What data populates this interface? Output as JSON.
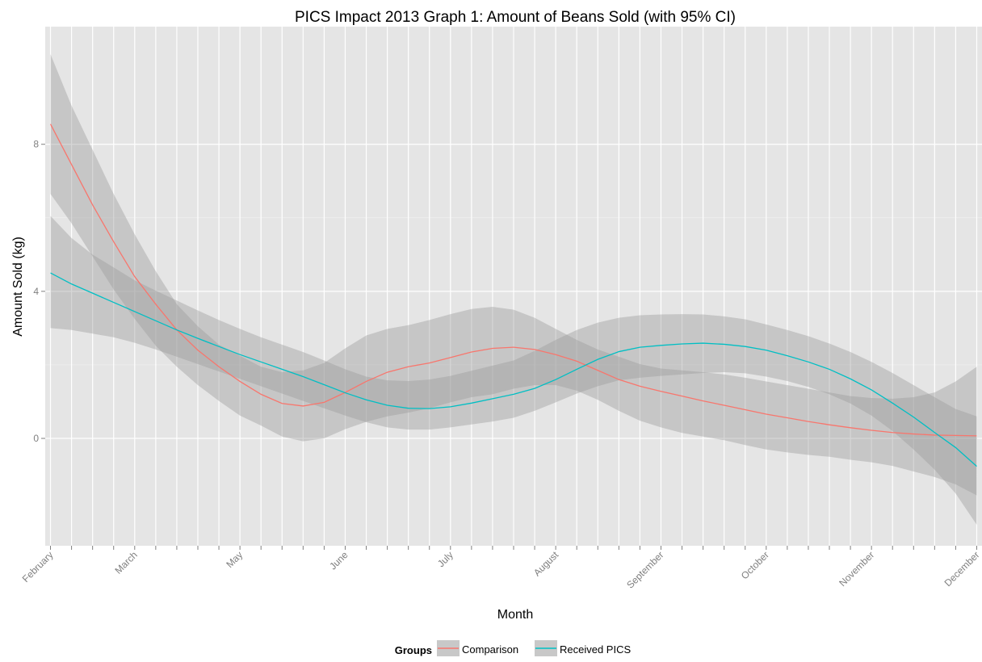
{
  "chart_data": {
    "type": "line",
    "title": "PICS Impact 2013 Graph 1: Amount of Beans Sold (with 95% CI)",
    "xlabel": "Month",
    "ylabel": "Amount Sold (kg)",
    "x_tick_labels": [
      {
        "label": "February",
        "x": 0
      },
      {
        "label": "March",
        "x": 4
      },
      {
        "label": "May",
        "x": 9
      },
      {
        "label": "June",
        "x": 14
      },
      {
        "label": "July",
        "x": 19
      },
      {
        "label": "August",
        "x": 24
      },
      {
        "label": "September",
        "x": 29
      },
      {
        "label": "October",
        "x": 34
      },
      {
        "label": "November",
        "x": 39
      },
      {
        "label": "December",
        "x": 44
      }
    ],
    "x_range": [
      -0.25,
      44.25
    ],
    "x_minor_ticks": 44,
    "y_ticks": [
      0,
      4,
      8
    ],
    "ylim": [
      -2.92,
      11.2
    ],
    "grid": true,
    "legend": {
      "title": "Groups",
      "position": "bottom",
      "entries": [
        "Comparison",
        "Received PICS"
      ]
    },
    "series": [
      {
        "name": "Comparison",
        "color": "#F8766D",
        "points": [
          [
            0,
            8.55
          ],
          [
            1,
            7.45
          ],
          [
            2,
            6.35
          ],
          [
            3,
            5.35
          ],
          [
            4,
            4.4
          ],
          [
            5,
            3.65
          ],
          [
            6,
            2.95
          ],
          [
            7,
            2.4
          ],
          [
            8,
            1.95
          ],
          [
            9,
            1.55
          ],
          [
            10,
            1.2
          ],
          [
            11,
            0.95
          ],
          [
            12,
            0.88
          ],
          [
            13,
            0.98
          ],
          [
            14,
            1.25
          ],
          [
            15,
            1.55
          ],
          [
            16,
            1.8
          ],
          [
            17,
            1.95
          ],
          [
            18,
            2.05
          ],
          [
            19,
            2.2
          ],
          [
            20,
            2.35
          ],
          [
            21,
            2.45
          ],
          [
            22,
            2.48
          ],
          [
            23,
            2.42
          ],
          [
            24,
            2.28
          ],
          [
            25,
            2.1
          ],
          [
            26,
            1.85
          ],
          [
            27,
            1.6
          ],
          [
            28,
            1.42
          ],
          [
            29,
            1.28
          ],
          [
            30,
            1.15
          ],
          [
            31,
            1.02
          ],
          [
            32,
            0.9
          ],
          [
            33,
            0.78
          ],
          [
            34,
            0.66
          ],
          [
            35,
            0.56
          ],
          [
            36,
            0.46
          ],
          [
            37,
            0.37
          ],
          [
            38,
            0.29
          ],
          [
            39,
            0.22
          ],
          [
            40,
            0.16
          ],
          [
            41,
            0.12
          ],
          [
            42,
            0.09
          ],
          [
            43,
            0.08
          ],
          [
            44,
            0.07
          ]
        ],
        "ci_upper": [
          [
            0,
            10.45
          ],
          [
            1,
            9.05
          ],
          [
            2,
            7.85
          ],
          [
            3,
            6.65
          ],
          [
            4,
            5.55
          ],
          [
            5,
            4.55
          ],
          [
            6,
            3.65
          ],
          [
            7,
            3.05
          ],
          [
            8,
            2.55
          ],
          [
            9,
            2.25
          ],
          [
            10,
            1.95
          ],
          [
            11,
            1.8
          ],
          [
            12,
            1.85
          ],
          [
            13,
            2.05
          ],
          [
            14,
            2.45
          ],
          [
            15,
            2.8
          ],
          [
            16,
            2.98
          ],
          [
            17,
            3.08
          ],
          [
            18,
            3.22
          ],
          [
            19,
            3.38
          ],
          [
            20,
            3.52
          ],
          [
            21,
            3.58
          ],
          [
            22,
            3.5
          ],
          [
            23,
            3.28
          ],
          [
            24,
            2.98
          ],
          [
            25,
            2.68
          ],
          [
            26,
            2.42
          ],
          [
            27,
            2.22
          ],
          [
            28,
            2.02
          ],
          [
            29,
            1.9
          ],
          [
            30,
            1.85
          ],
          [
            31,
            1.8
          ],
          [
            32,
            1.74
          ],
          [
            33,
            1.65
          ],
          [
            34,
            1.55
          ],
          [
            35,
            1.45
          ],
          [
            36,
            1.35
          ],
          [
            37,
            1.25
          ],
          [
            38,
            1.15
          ],
          [
            39,
            1.1
          ],
          [
            40,
            1.08
          ],
          [
            41,
            1.12
          ],
          [
            42,
            1.25
          ],
          [
            43,
            1.55
          ],
          [
            44,
            1.95
          ]
        ],
        "ci_lower": [
          [
            0,
            6.65
          ],
          [
            1,
            5.85
          ],
          [
            2,
            4.95
          ],
          [
            3,
            4.05
          ],
          [
            4,
            3.25
          ],
          [
            5,
            2.52
          ],
          [
            6,
            1.95
          ],
          [
            7,
            1.45
          ],
          [
            8,
            1.02
          ],
          [
            9,
            0.62
          ],
          [
            10,
            0.35
          ],
          [
            11,
            0.05
          ],
          [
            12,
            -0.08
          ],
          [
            13,
            0.0
          ],
          [
            14,
            0.25
          ],
          [
            15,
            0.45
          ],
          [
            16,
            0.6
          ],
          [
            17,
            0.7
          ],
          [
            18,
            0.82
          ],
          [
            19,
            0.98
          ],
          [
            20,
            1.12
          ],
          [
            21,
            1.2
          ],
          [
            22,
            1.35
          ],
          [
            23,
            1.45
          ],
          [
            24,
            1.45
          ],
          [
            25,
            1.3
          ],
          [
            26,
            1.05
          ],
          [
            27,
            0.75
          ],
          [
            28,
            0.48
          ],
          [
            29,
            0.3
          ],
          [
            30,
            0.15
          ],
          [
            31,
            0.05
          ],
          [
            32,
            -0.05
          ],
          [
            33,
            -0.18
          ],
          [
            34,
            -0.3
          ],
          [
            35,
            -0.38
          ],
          [
            36,
            -0.45
          ],
          [
            37,
            -0.5
          ],
          [
            38,
            -0.58
          ],
          [
            39,
            -0.65
          ],
          [
            40,
            -0.75
          ],
          [
            41,
            -0.9
          ],
          [
            42,
            -1.05
          ],
          [
            43,
            -1.25
          ],
          [
            44,
            -1.55
          ]
        ]
      },
      {
        "name": "Received PICS",
        "color": "#00BFC4",
        "points": [
          [
            0,
            4.5
          ],
          [
            1,
            4.2
          ],
          [
            2,
            3.95
          ],
          [
            3,
            3.7
          ],
          [
            4,
            3.45
          ],
          [
            5,
            3.2
          ],
          [
            6,
            2.95
          ],
          [
            7,
            2.72
          ],
          [
            8,
            2.5
          ],
          [
            9,
            2.28
          ],
          [
            10,
            2.08
          ],
          [
            11,
            1.88
          ],
          [
            12,
            1.68
          ],
          [
            13,
            1.46
          ],
          [
            14,
            1.24
          ],
          [
            15,
            1.05
          ],
          [
            16,
            0.9
          ],
          [
            17,
            0.82
          ],
          [
            18,
            0.81
          ],
          [
            19,
            0.86
          ],
          [
            20,
            0.96
          ],
          [
            21,
            1.08
          ],
          [
            22,
            1.2
          ],
          [
            23,
            1.36
          ],
          [
            24,
            1.6
          ],
          [
            25,
            1.88
          ],
          [
            26,
            2.15
          ],
          [
            27,
            2.36
          ],
          [
            28,
            2.48
          ],
          [
            29,
            2.53
          ],
          [
            30,
            2.57
          ],
          [
            31,
            2.59
          ],
          [
            32,
            2.56
          ],
          [
            33,
            2.5
          ],
          [
            34,
            2.4
          ],
          [
            35,
            2.25
          ],
          [
            36,
            2.08
          ],
          [
            37,
            1.88
          ],
          [
            38,
            1.62
          ],
          [
            39,
            1.32
          ],
          [
            40,
            0.96
          ],
          [
            41,
            0.58
          ],
          [
            42,
            0.16
          ],
          [
            43,
            -0.25
          ],
          [
            44,
            -0.76
          ]
        ],
        "ci_upper": [
          [
            0,
            6.05
          ],
          [
            1,
            5.45
          ],
          [
            2,
            5.0
          ],
          [
            3,
            4.65
          ],
          [
            4,
            4.3
          ],
          [
            5,
            4.02
          ],
          [
            6,
            3.75
          ],
          [
            7,
            3.48
          ],
          [
            8,
            3.22
          ],
          [
            9,
            2.98
          ],
          [
            10,
            2.75
          ],
          [
            11,
            2.55
          ],
          [
            12,
            2.35
          ],
          [
            13,
            2.12
          ],
          [
            14,
            1.88
          ],
          [
            15,
            1.68
          ],
          [
            16,
            1.58
          ],
          [
            17,
            1.56
          ],
          [
            18,
            1.6
          ],
          [
            19,
            1.7
          ],
          [
            20,
            1.84
          ],
          [
            21,
            1.98
          ],
          [
            22,
            2.12
          ],
          [
            23,
            2.38
          ],
          [
            24,
            2.68
          ],
          [
            25,
            2.95
          ],
          [
            26,
            3.15
          ],
          [
            27,
            3.28
          ],
          [
            28,
            3.35
          ],
          [
            29,
            3.37
          ],
          [
            30,
            3.38
          ],
          [
            31,
            3.37
          ],
          [
            32,
            3.32
          ],
          [
            33,
            3.24
          ],
          [
            34,
            3.1
          ],
          [
            35,
            2.95
          ],
          [
            36,
            2.78
          ],
          [
            37,
            2.58
          ],
          [
            38,
            2.35
          ],
          [
            39,
            2.08
          ],
          [
            40,
            1.78
          ],
          [
            41,
            1.45
          ],
          [
            42,
            1.12
          ],
          [
            43,
            0.8
          ],
          [
            44,
            0.6
          ]
        ],
        "ci_lower": [
          [
            0,
            3.0
          ],
          [
            1,
            2.95
          ],
          [
            2,
            2.85
          ],
          [
            3,
            2.75
          ],
          [
            4,
            2.6
          ],
          [
            5,
            2.42
          ],
          [
            6,
            2.22
          ],
          [
            7,
            2.02
          ],
          [
            8,
            1.82
          ],
          [
            9,
            1.62
          ],
          [
            10,
            1.42
          ],
          [
            11,
            1.22
          ],
          [
            12,
            1.02
          ],
          [
            13,
            0.82
          ],
          [
            14,
            0.62
          ],
          [
            15,
            0.44
          ],
          [
            16,
            0.3
          ],
          [
            17,
            0.24
          ],
          [
            18,
            0.24
          ],
          [
            19,
            0.3
          ],
          [
            20,
            0.38
          ],
          [
            21,
            0.46
          ],
          [
            22,
            0.56
          ],
          [
            23,
            0.75
          ],
          [
            24,
            0.98
          ],
          [
            25,
            1.22
          ],
          [
            26,
            1.42
          ],
          [
            27,
            1.58
          ],
          [
            28,
            1.65
          ],
          [
            29,
            1.7
          ],
          [
            30,
            1.74
          ],
          [
            31,
            1.78
          ],
          [
            32,
            1.8
          ],
          [
            33,
            1.77
          ],
          [
            34,
            1.68
          ],
          [
            35,
            1.56
          ],
          [
            36,
            1.4
          ],
          [
            37,
            1.2
          ],
          [
            38,
            0.95
          ],
          [
            39,
            0.62
          ],
          [
            40,
            0.2
          ],
          [
            41,
            -0.3
          ],
          [
            42,
            -0.85
          ],
          [
            43,
            -1.5
          ],
          [
            44,
            -2.35
          ]
        ]
      }
    ]
  }
}
